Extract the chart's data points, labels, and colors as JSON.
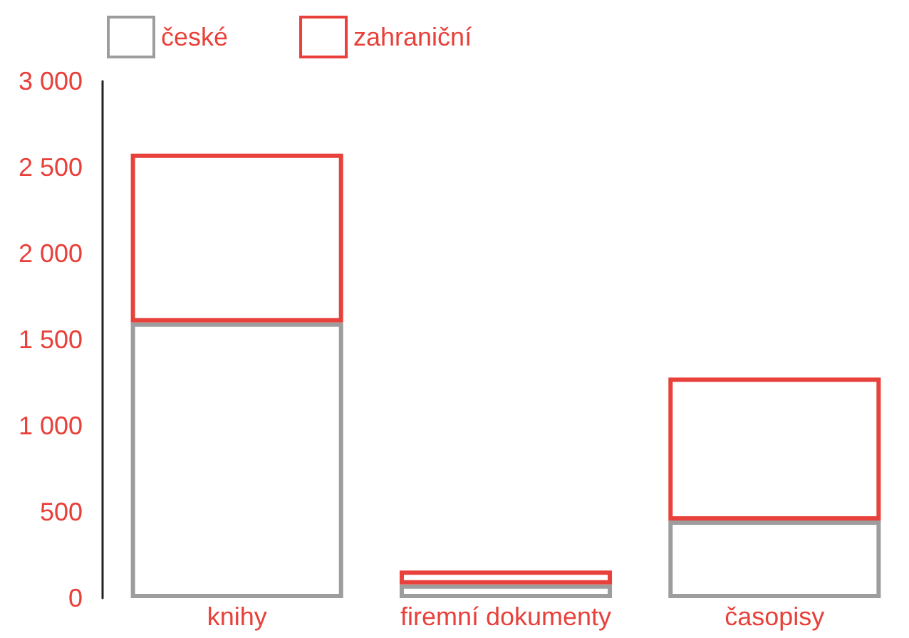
{
  "chart_data": {
    "type": "bar",
    "stacked": true,
    "categories": [
      "knihy",
      "firemní dokumenty",
      "časopisy"
    ],
    "series": [
      {
        "name": "české",
        "color": "#9d9d9d",
        "values": [
          1600,
          80,
          450
        ]
      },
      {
        "name": "zahraniční",
        "color": "#e8403a",
        "values": [
          980,
          80,
          830
        ]
      }
    ],
    "ylim": [
      0,
      3000
    ],
    "yticks": [
      0,
      500,
      {
        "value": 1000,
        "label": "1 000"
      },
      {
        "value": 1500,
        "label": "1 500"
      },
      {
        "value": 2000,
        "label": "2 000"
      },
      {
        "value": 2500,
        "label": "2 500"
      },
      {
        "value": 3000,
        "label": "3 000"
      }
    ],
    "grid": false,
    "legend": "top left"
  }
}
